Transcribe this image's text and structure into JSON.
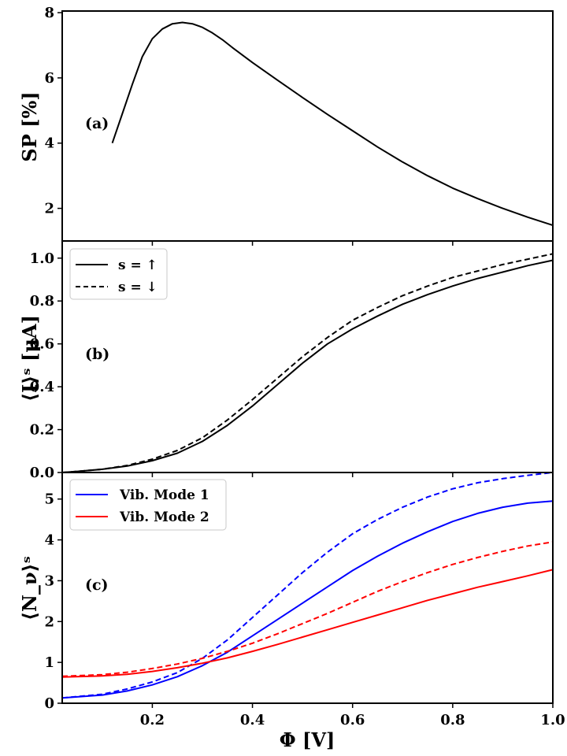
{
  "colors": {
    "black": "#000000",
    "mode1": "#0000ff",
    "mode2": "#ff0000"
  },
  "x_axis": {
    "label": "Φ [V]",
    "xlim": [
      0.02,
      1.0
    ],
    "ticks": [
      0.2,
      0.4,
      0.6,
      0.8,
      1.0
    ],
    "tick_labels": [
      "0.2",
      "0.4",
      "0.6",
      "0.8",
      "1.0"
    ]
  },
  "chart_data": [
    {
      "type": "line",
      "panel": "(a)",
      "ylabel": "SP [%]",
      "ylim": [
        1.0,
        8.05
      ],
      "yticks": [
        2,
        4,
        6,
        8
      ],
      "ytick_labels": [
        "2",
        "4",
        "6",
        "8"
      ],
      "series": [
        {
          "name": "SP",
          "color": "#000000",
          "dash": "solid",
          "x": [
            0.12,
            0.14,
            0.16,
            0.18,
            0.2,
            0.22,
            0.24,
            0.26,
            0.28,
            0.3,
            0.32,
            0.34,
            0.36,
            0.4,
            0.45,
            0.5,
            0.55,
            0.6,
            0.65,
            0.7,
            0.75,
            0.8,
            0.85,
            0.9,
            0.95,
            1.0
          ],
          "y": [
            4.0,
            4.9,
            5.8,
            6.65,
            7.2,
            7.5,
            7.66,
            7.7,
            7.66,
            7.55,
            7.38,
            7.17,
            6.93,
            6.47,
            5.93,
            5.4,
            4.88,
            4.38,
            3.88,
            3.42,
            3.0,
            2.62,
            2.3,
            2.0,
            1.73,
            1.48
          ]
        }
      ]
    },
    {
      "type": "line",
      "panel": "(b)",
      "ylabel": "⟨I⟩ˢ [μA]",
      "ylim": [
        0.0,
        1.08
      ],
      "yticks": [
        0.0,
        0.2,
        0.4,
        0.6,
        0.8,
        1.0
      ],
      "ytick_labels": [
        "0.0",
        "0.2",
        "0.4",
        "0.6",
        "0.8",
        "1.0"
      ],
      "legend": [
        "s = ↑",
        "s = ↓"
      ],
      "series": [
        {
          "name": "s = ↑",
          "color": "#000000",
          "dash": "solid",
          "x": [
            0.02,
            0.05,
            0.1,
            0.15,
            0.2,
            0.25,
            0.3,
            0.35,
            0.4,
            0.45,
            0.5,
            0.55,
            0.6,
            0.65,
            0.7,
            0.75,
            0.8,
            0.85,
            0.9,
            0.95,
            1.0
          ],
          "y": [
            0.0,
            0.005,
            0.015,
            0.03,
            0.055,
            0.09,
            0.145,
            0.22,
            0.31,
            0.41,
            0.51,
            0.6,
            0.67,
            0.73,
            0.785,
            0.83,
            0.87,
            0.905,
            0.935,
            0.965,
            0.99
          ]
        },
        {
          "name": "s = ↓",
          "color": "#000000",
          "dash": "dashed",
          "x": [
            0.02,
            0.05,
            0.1,
            0.15,
            0.2,
            0.25,
            0.3,
            0.35,
            0.4,
            0.45,
            0.5,
            0.55,
            0.6,
            0.65,
            0.7,
            0.75,
            0.8,
            0.85,
            0.9,
            0.95,
            1.0
          ],
          "y": [
            0.0,
            0.005,
            0.015,
            0.033,
            0.062,
            0.103,
            0.162,
            0.245,
            0.34,
            0.44,
            0.54,
            0.63,
            0.71,
            0.77,
            0.825,
            0.87,
            0.91,
            0.94,
            0.97,
            0.995,
            1.02
          ]
        }
      ]
    },
    {
      "type": "line",
      "panel": "(c)",
      "ylabel": "⟨N_ν⟩ˢ",
      "ylim": [
        0.0,
        5.65
      ],
      "yticks": [
        0,
        1,
        2,
        3,
        4,
        5
      ],
      "ytick_labels": [
        "0",
        "1",
        "2",
        "3",
        "4",
        "5"
      ],
      "legend": [
        "Vib. Mode 1",
        "Vib. Mode 2"
      ],
      "series": [
        {
          "name": "Vib. Mode 1 (s = ↑)",
          "color": "#0000ff",
          "dash": "solid",
          "x": [
            0.02,
            0.1,
            0.15,
            0.2,
            0.25,
            0.3,
            0.35,
            0.4,
            0.45,
            0.5,
            0.55,
            0.6,
            0.65,
            0.7,
            0.75,
            0.8,
            0.85,
            0.9,
            0.95,
            1.0
          ],
          "y": [
            0.13,
            0.2,
            0.3,
            0.45,
            0.65,
            0.92,
            1.25,
            1.65,
            2.05,
            2.45,
            2.85,
            3.25,
            3.6,
            3.92,
            4.2,
            4.45,
            4.65,
            4.8,
            4.9,
            4.95
          ]
        },
        {
          "name": "Vib. Mode 1 (s = ↓)",
          "color": "#0000ff",
          "dash": "dashed",
          "x": [
            0.02,
            0.1,
            0.15,
            0.2,
            0.25,
            0.3,
            0.35,
            0.4,
            0.45,
            0.5,
            0.55,
            0.6,
            0.65,
            0.7,
            0.75,
            0.8,
            0.85,
            0.9,
            0.95,
            1.0
          ],
          "y": [
            0.13,
            0.22,
            0.35,
            0.52,
            0.75,
            1.1,
            1.55,
            2.1,
            2.65,
            3.2,
            3.7,
            4.15,
            4.5,
            4.8,
            5.05,
            5.25,
            5.4,
            5.5,
            5.58,
            5.65
          ]
        },
        {
          "name": "Vib. Mode 2 (s = ↑)",
          "color": "#ff0000",
          "dash": "solid",
          "x": [
            0.02,
            0.1,
            0.15,
            0.2,
            0.25,
            0.3,
            0.35,
            0.4,
            0.45,
            0.5,
            0.55,
            0.6,
            0.65,
            0.7,
            0.75,
            0.8,
            0.85,
            0.9,
            0.95,
            1.0
          ],
          "y": [
            0.64,
            0.67,
            0.71,
            0.78,
            0.87,
            0.98,
            1.11,
            1.27,
            1.44,
            1.62,
            1.8,
            1.98,
            2.16,
            2.34,
            2.52,
            2.68,
            2.84,
            2.98,
            3.12,
            3.27
          ]
        },
        {
          "name": "Vib. Mode 2 (s = ↓)",
          "color": "#ff0000",
          "dash": "dashed",
          "x": [
            0.02,
            0.1,
            0.15,
            0.2,
            0.25,
            0.3,
            0.35,
            0.4,
            0.45,
            0.5,
            0.55,
            0.6,
            0.65,
            0.7,
            0.75,
            0.8,
            0.85,
            0.9,
            0.95,
            1.0
          ],
          "y": [
            0.66,
            0.7,
            0.76,
            0.85,
            0.96,
            1.1,
            1.27,
            1.47,
            1.7,
            1.95,
            2.2,
            2.47,
            2.74,
            2.98,
            3.2,
            3.4,
            3.57,
            3.72,
            3.85,
            3.95
          ]
        }
      ]
    }
  ]
}
